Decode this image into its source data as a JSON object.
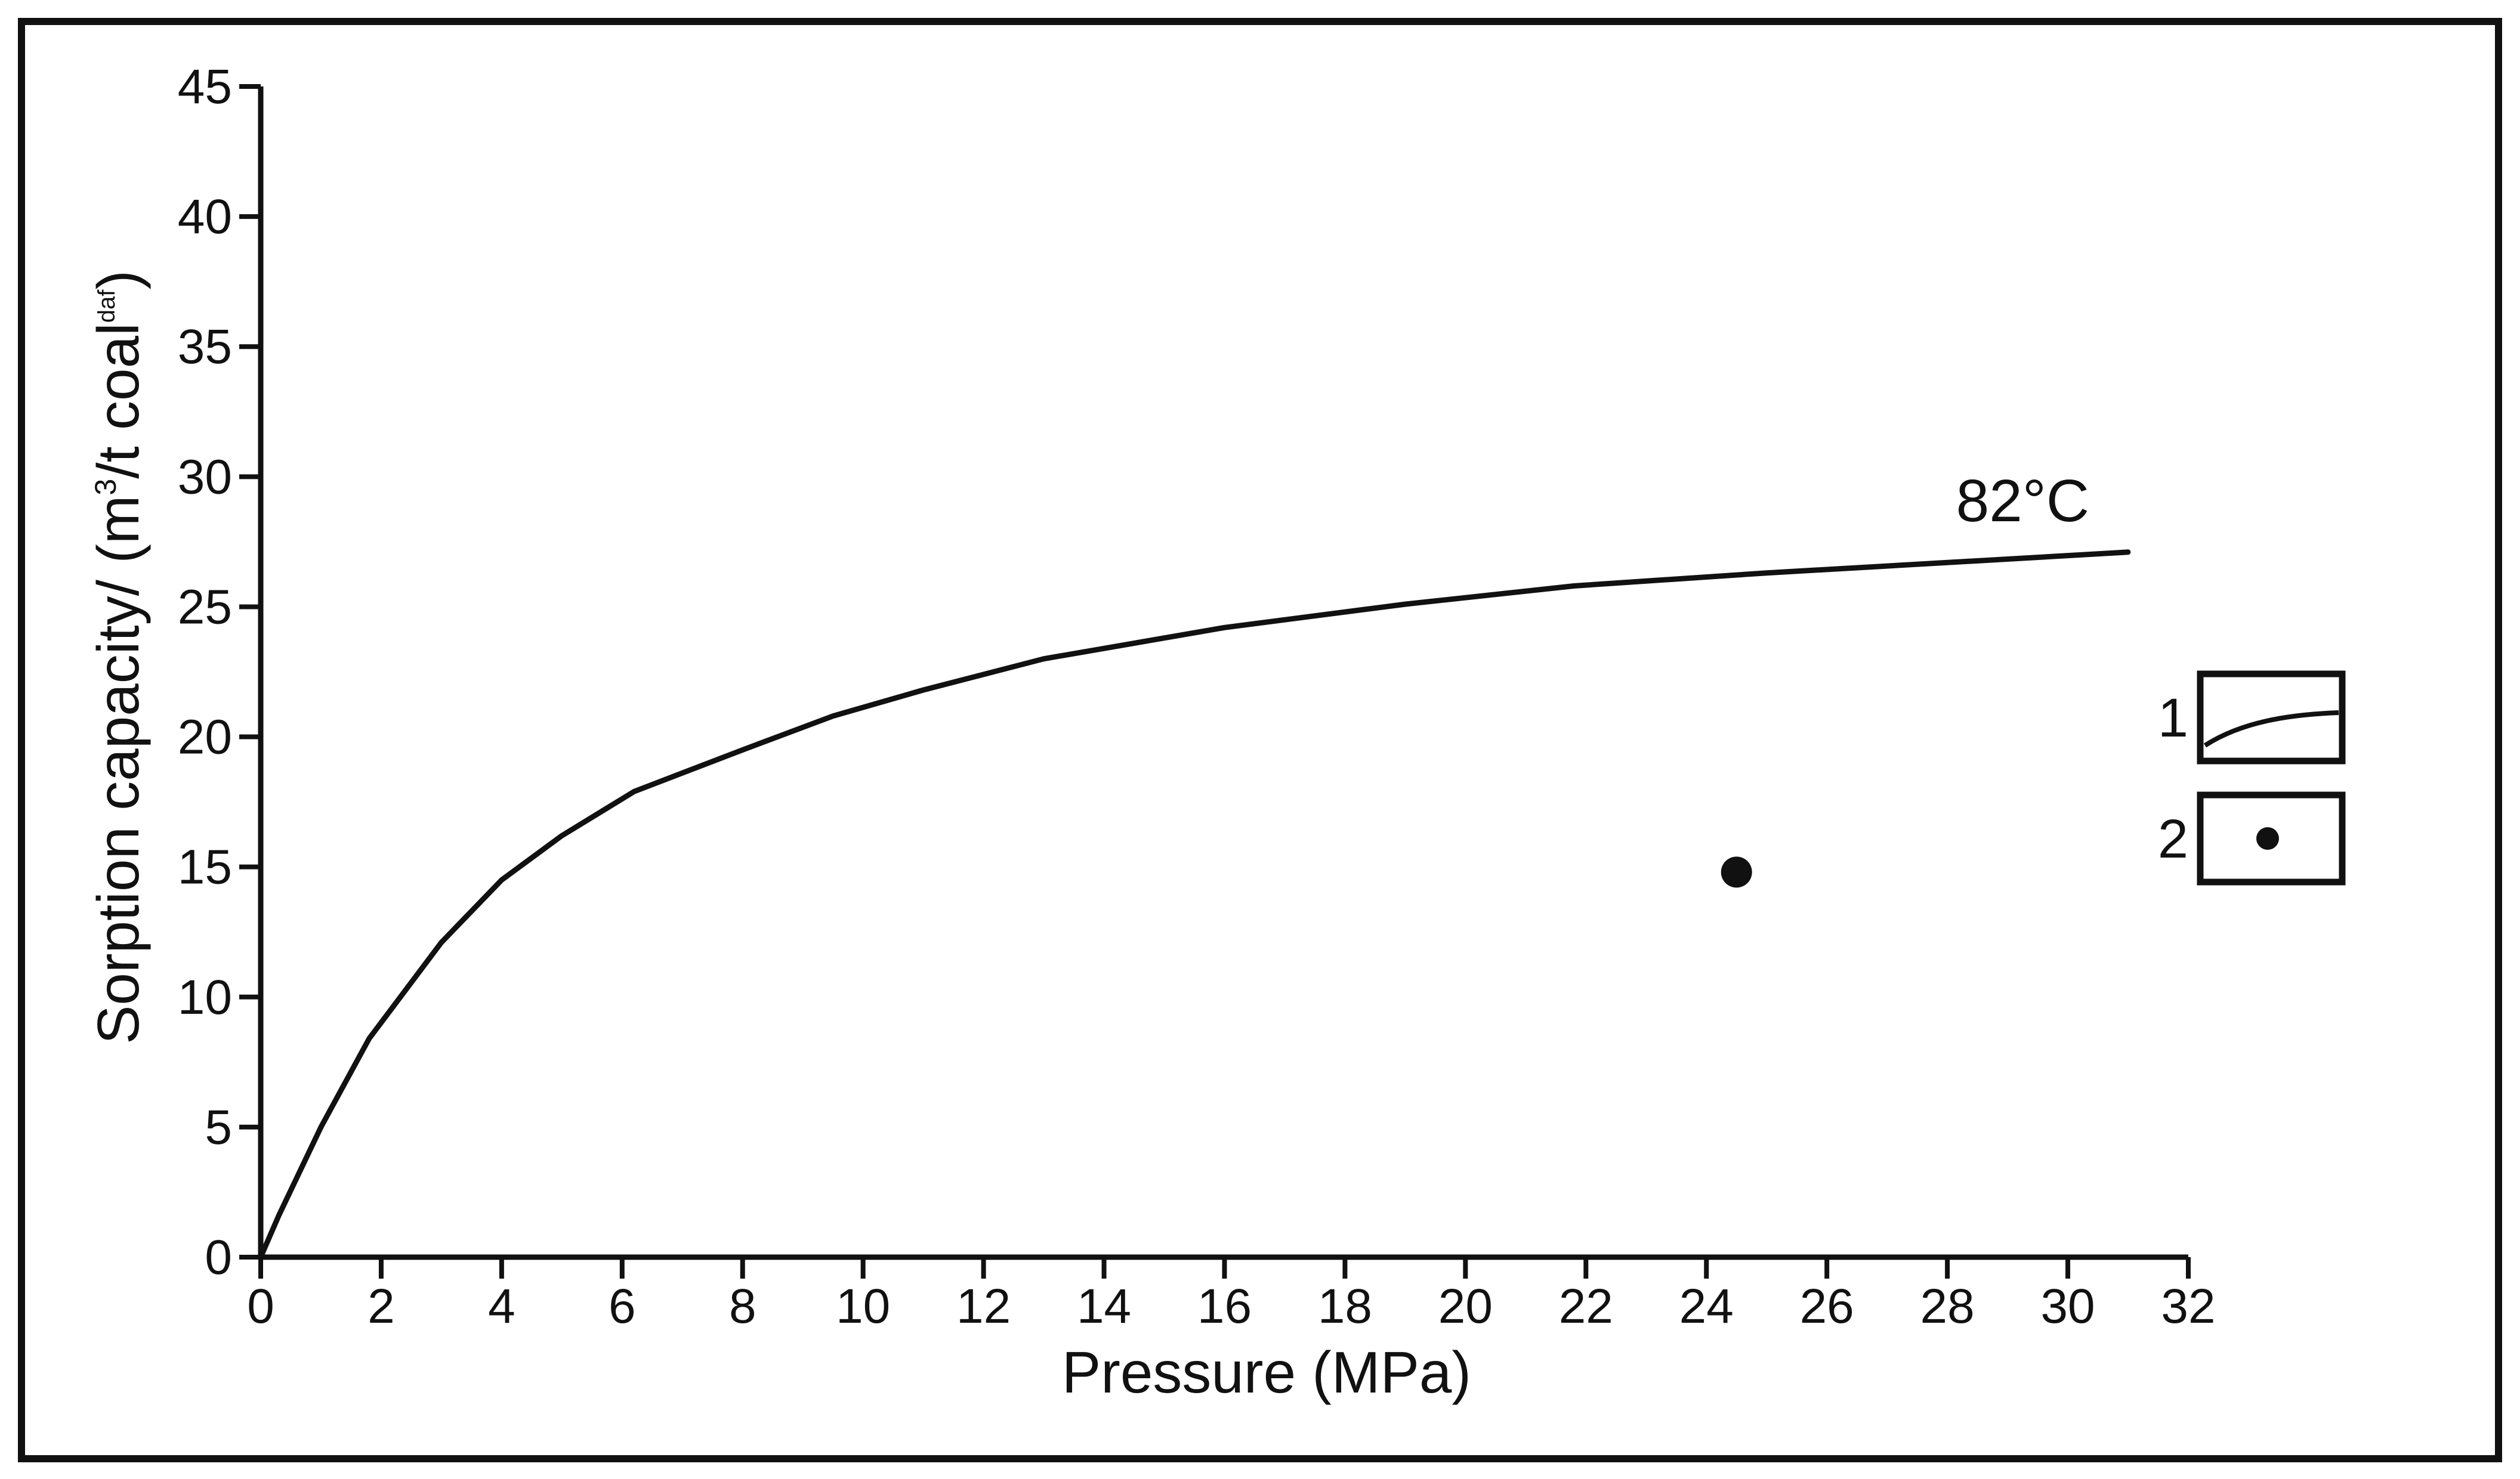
{
  "chart_data": {
    "type": "line",
    "title": "",
    "xlabel": "Pressure (MPa)",
    "ylabel": {
      "prefix": "Sorption capacity/ (m",
      "sup1": "3",
      "middle": "/t coal",
      "sup2": "daf",
      "suffix": ")"
    },
    "xlim": [
      0,
      32
    ],
    "ylim": [
      0,
      45
    ],
    "xticks": [
      0,
      2,
      4,
      6,
      8,
      10,
      12,
      14,
      16,
      18,
      20,
      22,
      24,
      26,
      28,
      30,
      32
    ],
    "yticks": [
      0,
      5,
      10,
      15,
      20,
      25,
      30,
      35,
      40,
      45
    ],
    "grid": false,
    "series": [
      {
        "name": "1",
        "kind": "line",
        "label": "82°C",
        "x": [
          0,
          0.3,
          1.0,
          1.8,
          3.0,
          4.0,
          5.0,
          6.2,
          8.0,
          9.5,
          11.0,
          13.0,
          16.0,
          19.0,
          21.8,
          25.0,
          28.0,
          31.0
        ],
        "y": [
          0,
          1.6,
          5.0,
          8.4,
          12.1,
          14.5,
          16.2,
          17.9,
          19.5,
          20.8,
          21.8,
          23.0,
          24.2,
          25.1,
          25.8,
          26.3,
          26.7,
          27.1
        ]
      },
      {
        "name": "2",
        "kind": "point",
        "x": [
          24.5
        ],
        "y": [
          14.8
        ]
      }
    ],
    "legend": {
      "position": "right",
      "entries": [
        {
          "number": "1",
          "symbol": "line"
        },
        {
          "number": "2",
          "symbol": "point"
        }
      ]
    }
  }
}
